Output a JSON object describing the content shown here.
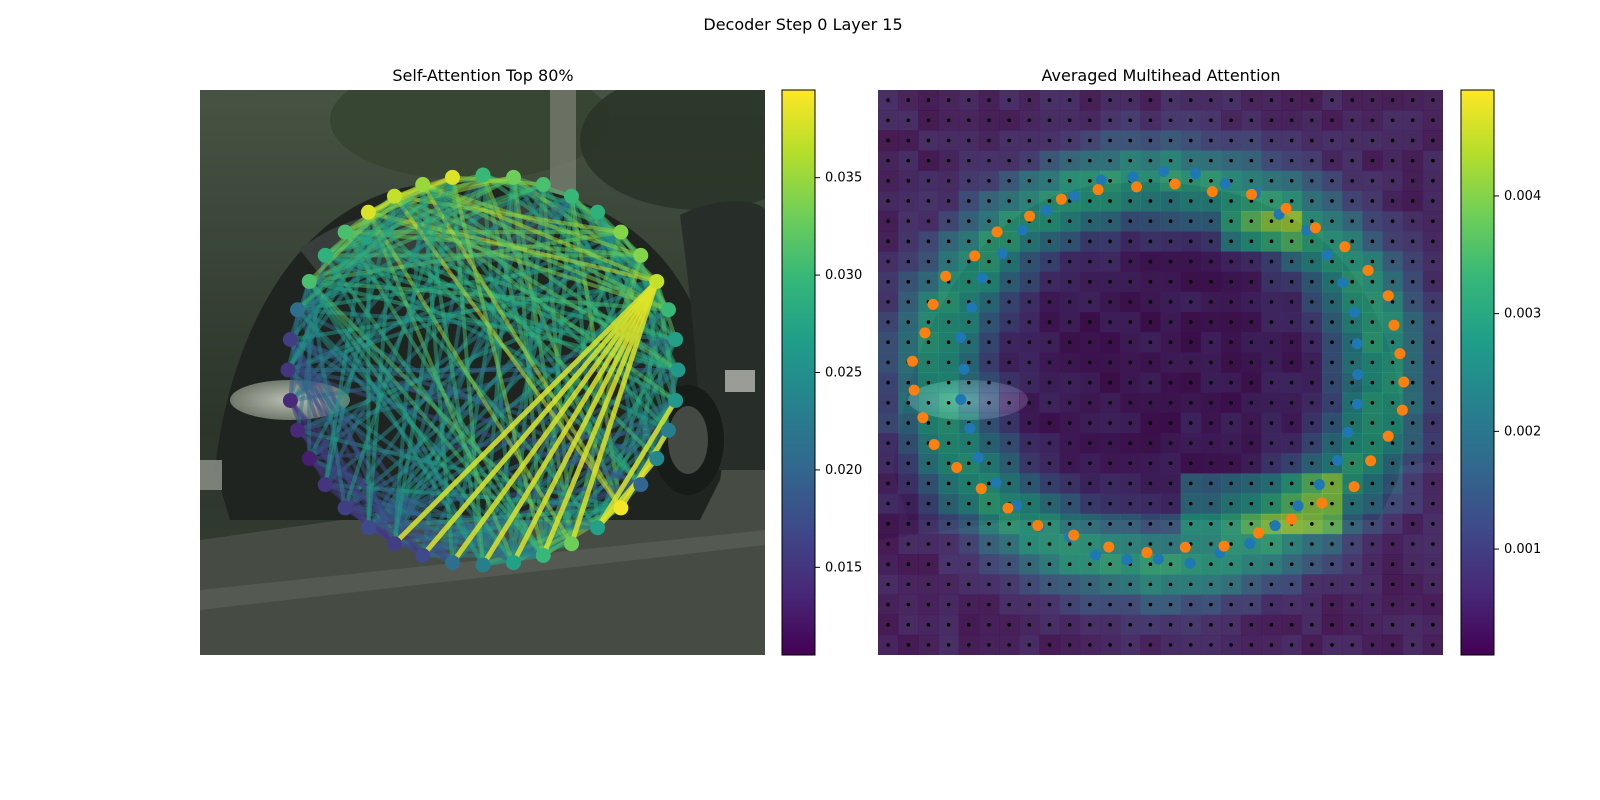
{
  "figure": {
    "suptitle": "Decoder Step 0 Layer 15"
  },
  "colors": {
    "viridis": [
      "#440154",
      "#482878",
      "#3e4989",
      "#31688e",
      "#26828e",
      "#1f9e89",
      "#35b779",
      "#6ece58",
      "#b5de2b",
      "#fde725"
    ],
    "contour_blue": "#1f77b4",
    "contour_orange": "#ff7f0e",
    "grid_dot": "#000000",
    "photo_sky": "#3a4a3a",
    "photo_car": "#2b302b",
    "photo_road": "#4a4f48"
  },
  "chart_data": [
    {
      "type": "network",
      "title": "Self-Attention Top 80%",
      "background": "photo of a dark car on a street",
      "node_count": 40,
      "edge_alpha": 0.5,
      "node_values": [
        0.03,
        0.033,
        0.031,
        0.03,
        0.029,
        0.034,
        0.034,
        0.037,
        0.03,
        0.027,
        0.026,
        0.026,
        0.023,
        0.024,
        0.02,
        0.039,
        0.027,
        0.033,
        0.03,
        0.027,
        0.023,
        0.021,
        0.017,
        0.016,
        0.017,
        0.016,
        0.015,
        0.013,
        0.014,
        0.014,
        0.015,
        0.016,
        0.021,
        0.031,
        0.029,
        0.031,
        0.038,
        0.037,
        0.035,
        0.038
      ],
      "colorbar": {
        "min": 0.0105,
        "max": 0.0395,
        "ticks": [
          0.015,
          0.02,
          0.025,
          0.03,
          0.035
        ],
        "tick_labels": [
          "0.015",
          "0.020",
          "0.025",
          "0.030",
          "0.035"
        ]
      }
    },
    {
      "type": "heatmap",
      "title": "Averaged Multihead Attention",
      "grid": {
        "rows": 28,
        "cols": 28
      },
      "colorbar": {
        "min": 0.0001,
        "max": 0.0049,
        "ticks": [
          0.001,
          0.002,
          0.003,
          0.004
        ],
        "tick_labels": [
          "0.001",
          "0.002",
          "0.003",
          "0.004"
        ]
      },
      "series": [
        {
          "marker": "blue",
          "count": 40
        },
        {
          "marker": "orange",
          "count": 40
        }
      ]
    }
  ]
}
